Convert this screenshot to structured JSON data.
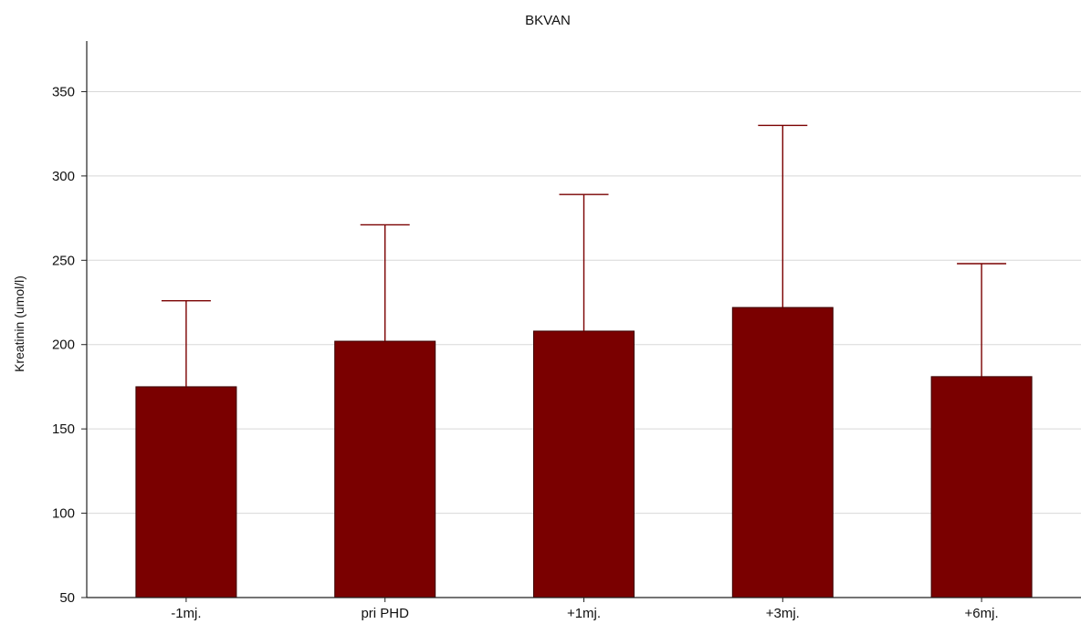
{
  "chart_data": {
    "type": "bar",
    "title": "BKVAN",
    "xlabel": "",
    "ylabel": "Kreatinin (umol/l)",
    "categories": [
      "-1mj.",
      "pri PHD",
      "+1mj.",
      "+3mj.",
      "+6mj."
    ],
    "values": [
      175,
      202,
      208,
      222,
      181
    ],
    "error_upper": [
      226,
      271,
      289,
      330,
      248
    ],
    "ylim": [
      50,
      380
    ],
    "yticks": [
      50,
      100,
      150,
      200,
      250,
      300,
      350
    ],
    "grid": true,
    "bar_color": "#7a0000",
    "error_color": "#7a0000"
  }
}
